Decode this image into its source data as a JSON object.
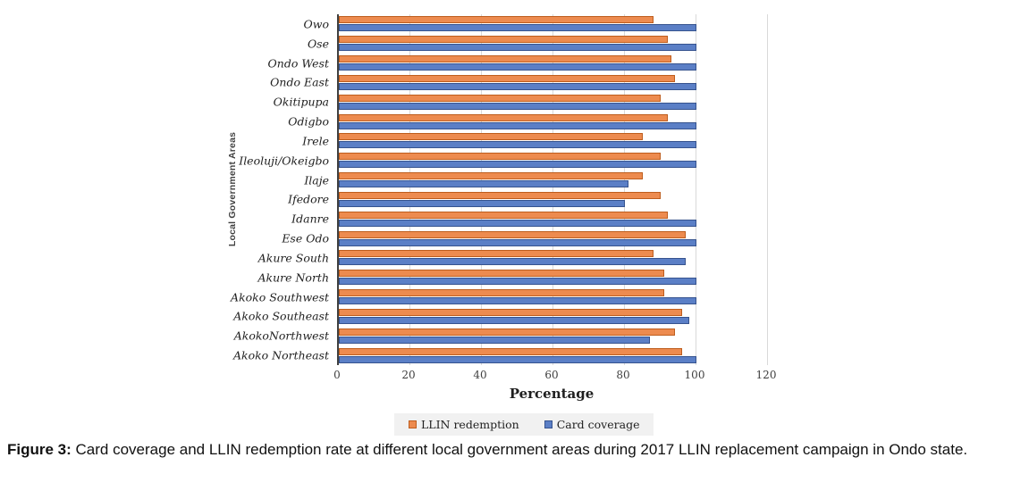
{
  "figure": {
    "caption_label": "Figure 3:",
    "caption_text": " Card coverage and LLIN redemption rate at different local government areas during 2017 LLIN replacement campaign in Ondo state."
  },
  "chart_data": {
    "type": "bar",
    "orientation": "horizontal",
    "title": "",
    "xlabel": "Percentage",
    "ylabel": "Local Government Areas",
    "xlim": [
      0,
      120
    ],
    "xticks": [
      0,
      20,
      40,
      60,
      80,
      100,
      120
    ],
    "grid": true,
    "legend_position": "bottom-center",
    "categories_top_to_bottom": [
      "Owo",
      "Ose",
      "Ondo West",
      "Ondo East",
      "Okitipupa",
      "Odigbo",
      "Irele",
      "Ileoluji/Okeigbo",
      "Ilaje",
      "Ifedore",
      "Idanre",
      "Ese Odo",
      "Akure South",
      "Akure North",
      "Akoko Southwest",
      "Akoko Southeast",
      "AkokoNorthwest",
      "Akoko Northeast"
    ],
    "series": [
      {
        "name": "LLIN redemption",
        "fill_color": "#ED8B4F",
        "border_color": "#BE5D1D",
        "values": [
          88,
          92,
          93,
          94,
          90,
          92,
          85,
          90,
          85,
          90,
          92,
          97,
          88,
          91,
          91,
          96,
          94,
          96
        ]
      },
      {
        "name": "Card coverage",
        "fill_color": "#5B7FC6",
        "border_color": "#36538E",
        "values": [
          100,
          100,
          100,
          100,
          100,
          100,
          100,
          100,
          81,
          80,
          100,
          100,
          97,
          100,
          100,
          98,
          87,
          100
        ]
      }
    ],
    "colors": {
      "gridline": "#d9d9d9",
      "axis_line": "#404040",
      "legend_background": "#f1f1f1"
    }
  }
}
